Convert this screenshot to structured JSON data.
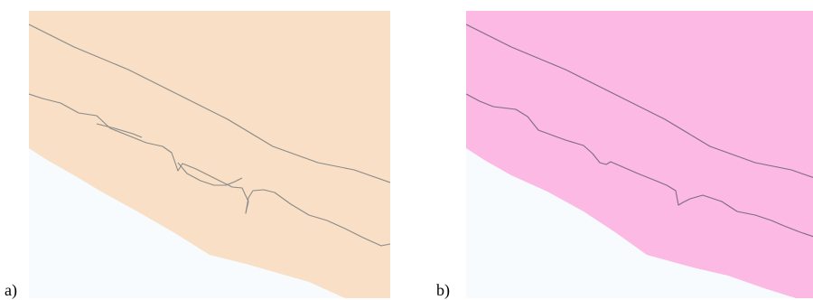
{
  "panels": [
    {
      "label": "a)",
      "fill_color": "#f8dfc5",
      "line_color": "#8a8a8a",
      "background_color": "#f7fbfd"
    },
    {
      "label": "b)",
      "fill_color": "#fbb9e3",
      "line_color": "#7f6a85",
      "background_color": "#f7fbfd"
    }
  ]
}
